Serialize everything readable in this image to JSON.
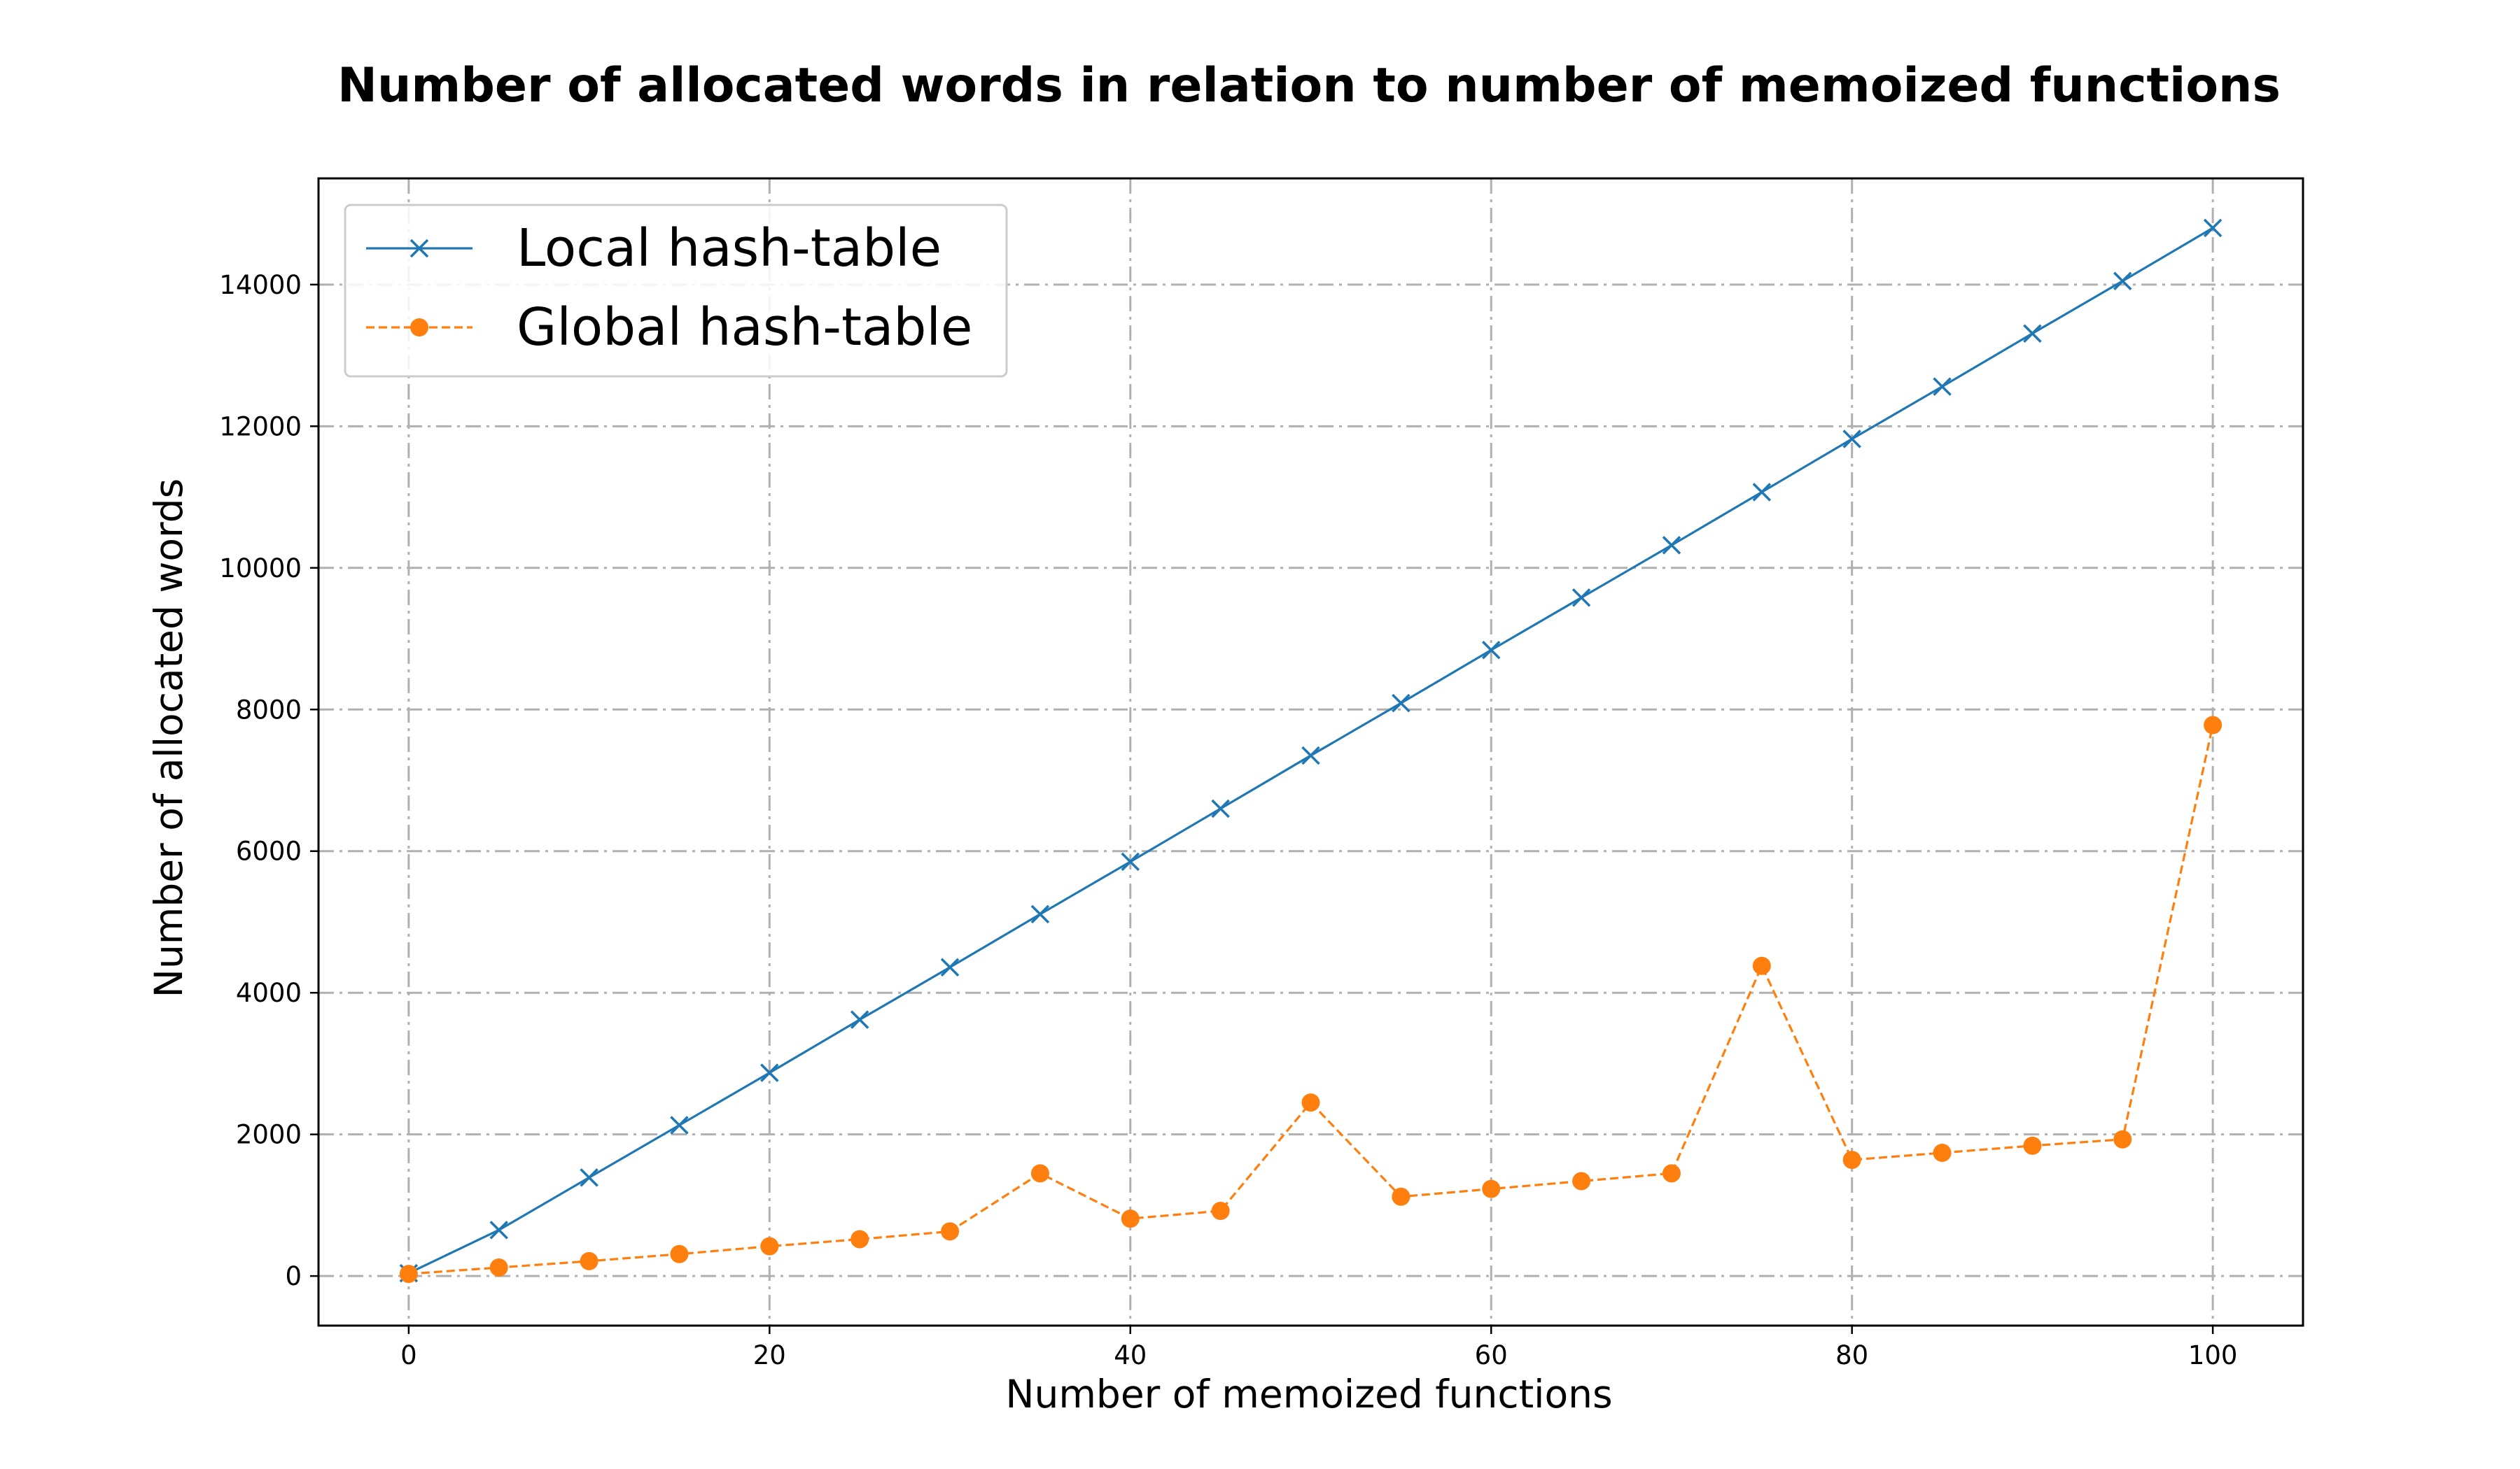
{
  "chart_data": {
    "type": "line",
    "title": "Number of allocated words in relation to number of memoized functions",
    "xlabel": "Number of memoized functions",
    "ylabel": "Number of allocated words",
    "xlim": [
      -5,
      105
    ],
    "ylim": [
      -700,
      15500
    ],
    "xticks": [
      0,
      20,
      40,
      60,
      80,
      100
    ],
    "yticks": [
      0,
      2000,
      4000,
      6000,
      8000,
      10000,
      12000,
      14000
    ],
    "grid": true,
    "legend_position": "top-left",
    "x": [
      0,
      5,
      10,
      15,
      20,
      25,
      30,
      35,
      40,
      45,
      50,
      55,
      60,
      65,
      70,
      75,
      80,
      85,
      90,
      95,
      100
    ],
    "series": [
      {
        "name": "Local hash-table",
        "color": "#1f77b4",
        "line_style": "solid",
        "marker": "x",
        "values": [
          40,
          650,
          1390,
          2130,
          2870,
          3620,
          4360,
          5110,
          5850,
          6600,
          7350,
          8090,
          8840,
          9580,
          10320,
          11070,
          11820,
          12560,
          13310,
          14050,
          14800
        ]
      },
      {
        "name": "Global hash-table",
        "color": "#ff7f0e",
        "line_style": "dashed",
        "marker": "circle",
        "values": [
          30,
          120,
          210,
          310,
          420,
          520,
          630,
          1450,
          810,
          920,
          2450,
          1120,
          1230,
          1340,
          1450,
          4380,
          1640,
          1740,
          1840,
          1930,
          7780
        ]
      }
    ]
  }
}
